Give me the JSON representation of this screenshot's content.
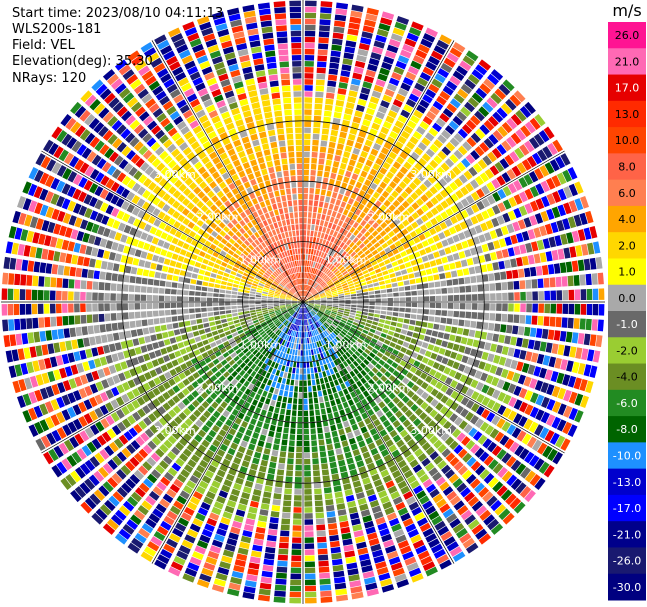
{
  "header": {
    "start_time": "Start time: 2023/08/10 04:11:13",
    "instrument": "WLS200s-181",
    "field": "Field: VEL",
    "elevation": "Elevation(deg): 35.30",
    "nrays": "NRays: 120"
  },
  "colorbar": {
    "unit": "m/s",
    "ticks": [
      "26.0",
      "21.0",
      "17.0",
      "13.0",
      "10.0",
      "8.0",
      "6.0",
      "4.0",
      "2.0",
      "1.0",
      "0.0",
      "-1.0",
      "-2.0",
      "-4.0",
      "-6.0",
      "-8.0",
      "-10.0",
      "-13.0",
      "-17.0",
      "-21.0",
      "-26.0",
      "-30.0"
    ],
    "colors": [
      "#ff1493",
      "#ff69b4",
      "#e60000",
      "#ff2a00",
      "#ff4500",
      "#ff6347",
      "#ff7f50",
      "#ffa500",
      "#ffd700",
      "#ffff00",
      "#a9a9a9",
      "#696969",
      "#9acd32",
      "#6b8e23",
      "#228b22",
      "#006400",
      "#1e90ff",
      "#0000cd",
      "#0000ff",
      "#00008b",
      "#191970",
      "#000080"
    ]
  },
  "chart_data": {
    "type": "ppi",
    "field": "VEL",
    "elevation_deg": 35.3,
    "n_rays": 120,
    "range_ring_labels": [
      "1.00km",
      "2.00km",
      "3.00km"
    ],
    "ring_ranges_km": [
      1.0,
      2.0,
      3.0
    ],
    "max_range_km": 5.0,
    "spoke_azimuths_deg": [
      0,
      30,
      60,
      90,
      120,
      150,
      180,
      210,
      240,
      270,
      300,
      330
    ],
    "vmin": -30.0,
    "vmax": 26.0,
    "pattern": "dipole: positive velocities (yellow/orange/red) north, negative (green/blue) south; noisy speckle beyond ~3.5 km"
  }
}
